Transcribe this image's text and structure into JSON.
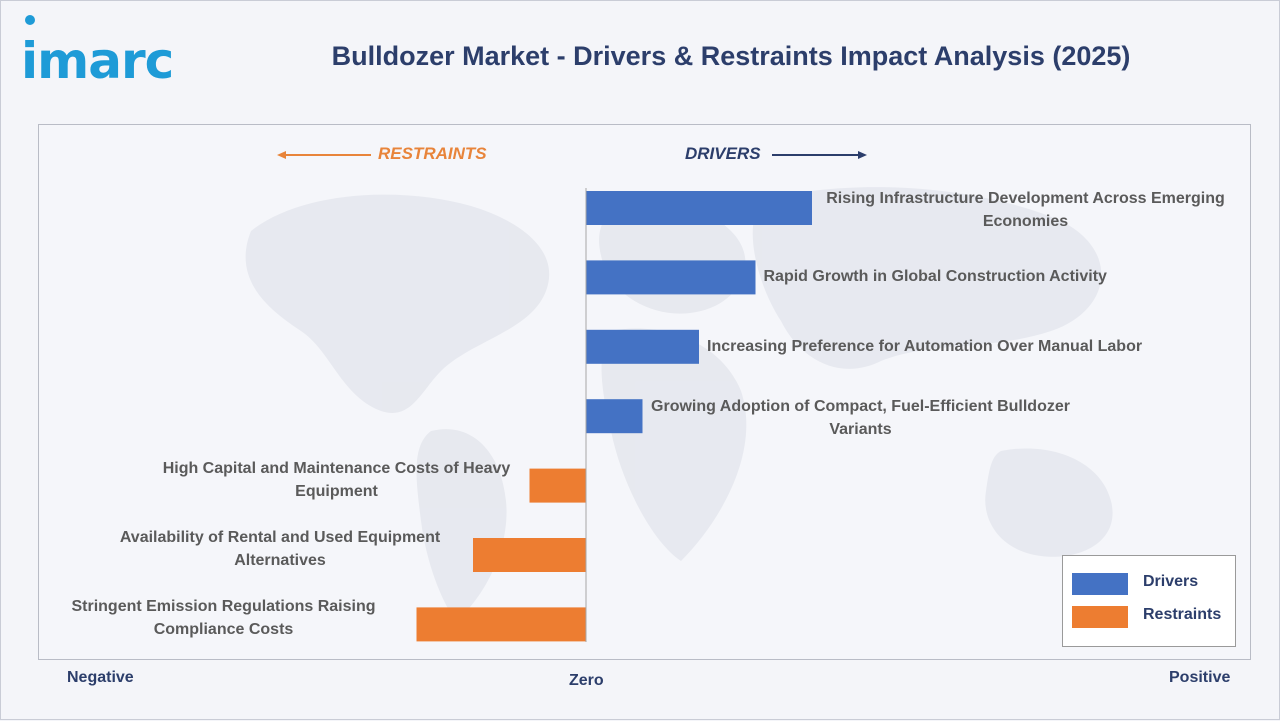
{
  "header": {
    "logo_text": "imarc",
    "title": "Bulldozer Market - Drivers & Restraints Impact Analysis (2025)"
  },
  "colors": {
    "drivers": "#4472c4",
    "restraints": "#ed7d31",
    "title": "#2c3e6b",
    "logo": "#1e9bd7"
  },
  "chart_data": {
    "type": "bar",
    "orientation": "horizontal-diverging",
    "direction_labels": {
      "restraints": "RESTRAINTS",
      "drivers": "DRIVERS"
    },
    "axis_labels": {
      "negative": "Negative",
      "zero": "Zero",
      "positive": "Positive"
    },
    "xlim": [
      -1,
      1
    ],
    "series": [
      {
        "name": "Drivers",
        "items": [
          {
            "label": "Rising Infrastructure Development Across Emerging Economies",
            "value": 0.4
          },
          {
            "label": "Rapid Growth in Global Construction Activity",
            "value": 0.3
          },
          {
            "label": "Increasing Preference for Automation Over Manual Labor",
            "value": 0.2
          },
          {
            "label": "Growing Adoption of Compact, Fuel-Efficient Bulldozer Variants",
            "value": 0.1
          }
        ]
      },
      {
        "name": "Restraints",
        "items": [
          {
            "label": "High Capital and Maintenance Costs of Heavy Equipment",
            "value": -0.1
          },
          {
            "label": "Availability of Rental and Used Equipment Alternatives",
            "value": -0.2
          },
          {
            "label": "Stringent Emission Regulations Raising Compliance Costs",
            "value": -0.3
          }
        ]
      }
    ],
    "legend": {
      "position": "bottom-right",
      "entries": [
        "Drivers",
        "Restraints"
      ]
    }
  }
}
